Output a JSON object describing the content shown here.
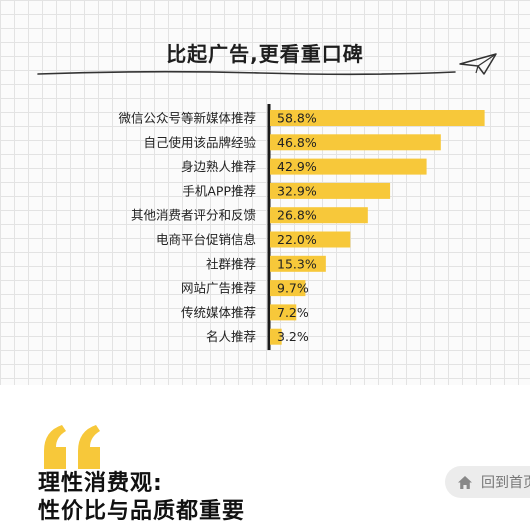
{
  "header": {
    "title": "比起广告,更看重口碑"
  },
  "chart_data": {
    "type": "bar",
    "orientation": "horizontal",
    "title": "比起广告,更看重口碑",
    "categories": [
      "微信公众号等新媒体推荐",
      "自己使用该品牌经验",
      "身边熟人推荐",
      "手机APP推荐",
      "其他消费者评分和反馈",
      "电商平台促销信息",
      "社群推荐",
      "网站广告推荐",
      "传统媒体推荐",
      "名人推荐"
    ],
    "values": [
      58.8,
      46.8,
      42.9,
      32.9,
      26.8,
      22.0,
      15.3,
      9.7,
      7.2,
      3.2
    ],
    "labels": [
      "58.8%",
      "46.8%",
      "42.9%",
      "32.9%",
      "26.8%",
      "22.0%",
      "15.3%",
      "9.7%",
      "7.2%",
      "3.2%"
    ],
    "unit": "%",
    "xlim": [
      0,
      60
    ],
    "grid": true,
    "bar_color": "#f7c83a"
  },
  "section": {
    "title_line1": "理性消费观:",
    "title_line2": "性价比与品质都重要",
    "quote_color": "#f7c83a"
  },
  "nav": {
    "back_home_label": "回到首页",
    "home_icon": "home-icon"
  }
}
